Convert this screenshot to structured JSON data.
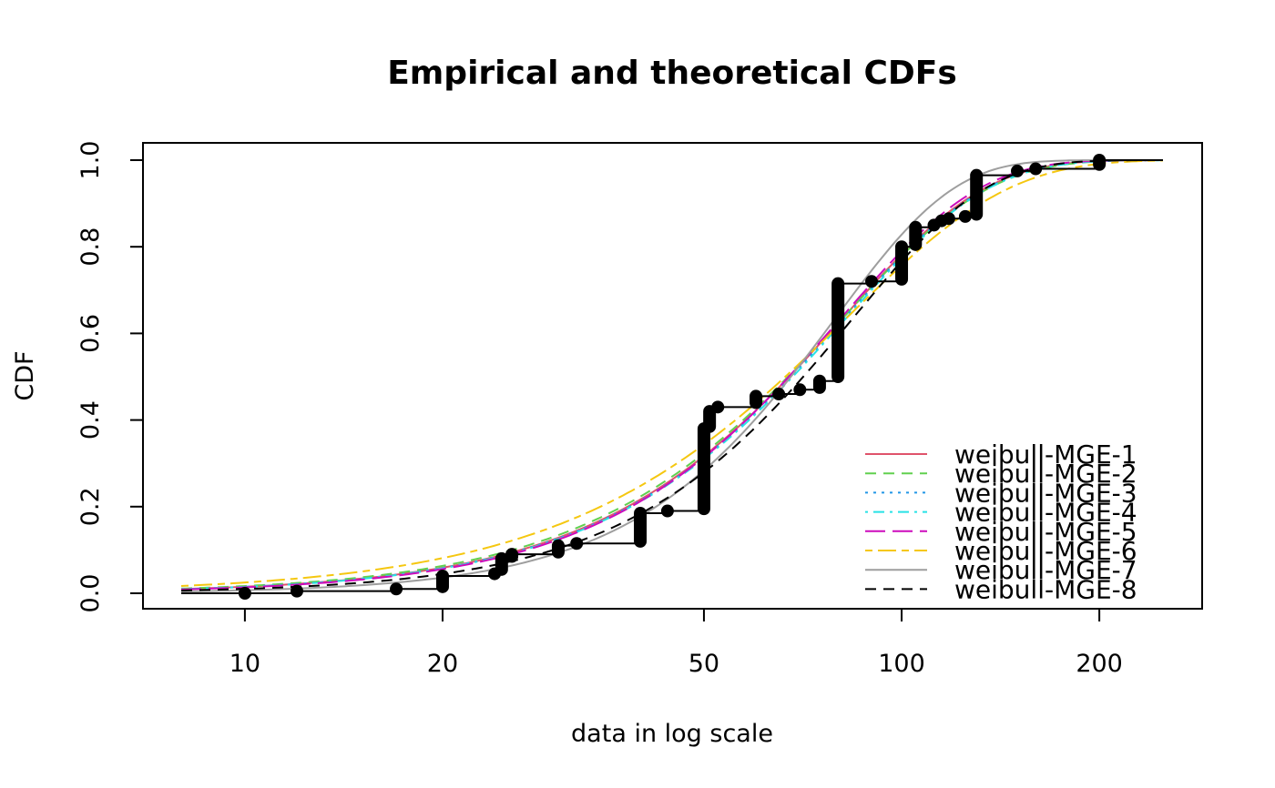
{
  "chart_data": {
    "type": "line",
    "title": "Empirical and theoretical CDFs",
    "xlabel": "data in log scale",
    "ylabel": "CDF",
    "x_scale": "log",
    "xlim": [
      8,
      250
    ],
    "ylim": [
      0,
      1
    ],
    "x_ticks": [
      10,
      20,
      50,
      100,
      200
    ],
    "x_tick_labels": [
      "10",
      "20",
      "50",
      "100",
      "200"
    ],
    "y_ticks": [
      0,
      0.2,
      0.4,
      0.6,
      0.8,
      1.0
    ],
    "y_tick_labels": [
      "0.0",
      "0.2",
      "0.4",
      "0.6",
      "0.8",
      "1.0"
    ],
    "grid": false,
    "legend_position": "bottom-right",
    "empirical": {
      "steps": [
        {
          "x": 10,
          "y_from": 0.0,
          "y_to": 0.0
        },
        {
          "x": 12,
          "y_from": 0.005,
          "y_to": 0.005
        },
        {
          "x": 17,
          "y_from": 0.01,
          "y_to": 0.01
        },
        {
          "x": 20,
          "y_from": 0.015,
          "y_to": 0.04
        },
        {
          "x": 24,
          "y_from": 0.045,
          "y_to": 0.045
        },
        {
          "x": 24.6,
          "y_from": 0.055,
          "y_to": 0.08
        },
        {
          "x": 25.5,
          "y_from": 0.085,
          "y_to": 0.09
        },
        {
          "x": 30,
          "y_from": 0.095,
          "y_to": 0.11
        },
        {
          "x": 32,
          "y_from": 0.115,
          "y_to": 0.115
        },
        {
          "x": 40,
          "y_from": 0.12,
          "y_to": 0.185
        },
        {
          "x": 44,
          "y_from": 0.19,
          "y_to": 0.19
        },
        {
          "x": 50,
          "y_from": 0.195,
          "y_to": 0.38
        },
        {
          "x": 51,
          "y_from": 0.385,
          "y_to": 0.42
        },
        {
          "x": 52.5,
          "y_from": 0.43,
          "y_to": 0.43
        },
        {
          "x": 60,
          "y_from": 0.44,
          "y_to": 0.455
        },
        {
          "x": 65,
          "y_from": 0.46,
          "y_to": 0.46
        },
        {
          "x": 70,
          "y_from": 0.47,
          "y_to": 0.47
        },
        {
          "x": 75,
          "y_from": 0.475,
          "y_to": 0.49
        },
        {
          "x": 80,
          "y_from": 0.5,
          "y_to": 0.715
        },
        {
          "x": 90,
          "y_from": 0.72,
          "y_to": 0.72
        },
        {
          "x": 100,
          "y_from": 0.725,
          "y_to": 0.8
        },
        {
          "x": 105,
          "y_from": 0.805,
          "y_to": 0.845
        },
        {
          "x": 112,
          "y_from": 0.85,
          "y_to": 0.85
        },
        {
          "x": 115,
          "y_from": 0.86,
          "y_to": 0.86
        },
        {
          "x": 118,
          "y_from": 0.865,
          "y_to": 0.865
        },
        {
          "x": 125,
          "y_from": 0.87,
          "y_to": 0.87
        },
        {
          "x": 130,
          "y_from": 0.875,
          "y_to": 0.965
        },
        {
          "x": 150,
          "y_from": 0.975,
          "y_to": 0.975
        },
        {
          "x": 160,
          "y_from": 0.98,
          "y_to": 0.98
        },
        {
          "x": 200,
          "y_from": 0.99,
          "y_to": 1.0
        }
      ]
    },
    "series": [
      {
        "name": "weibull-MGE-1",
        "color": "#df536b",
        "dash": "solid",
        "shape": 2.0,
        "scale": 81
      },
      {
        "name": "weibull-MGE-2",
        "color": "#61d04f",
        "dash": "dashed",
        "shape": 1.95,
        "scale": 81
      },
      {
        "name": "weibull-MGE-3",
        "color": "#2297e6",
        "dash": "dotted",
        "shape": 2.0,
        "scale": 81.5
      },
      {
        "name": "weibull-MGE-4",
        "color": "#28e2e5",
        "dash": "dotdash",
        "shape": 2.0,
        "scale": 82
      },
      {
        "name": "weibull-MGE-5",
        "color": "#cd0bbc",
        "dash": "longdash",
        "shape": 2.05,
        "scale": 80.5
      },
      {
        "name": "weibull-MGE-6",
        "color": "#f5c710",
        "dash": "twodash",
        "shape": 1.75,
        "scale": 82
      },
      {
        "name": "weibull-MGE-7",
        "color": "#9e9e9e",
        "dash": "solid",
        "shape": 2.4,
        "scale": 79
      },
      {
        "name": "weibull-MGE-8",
        "color": "#000000",
        "dash": "dashed",
        "shape": 2.15,
        "scale": 84
      }
    ]
  }
}
